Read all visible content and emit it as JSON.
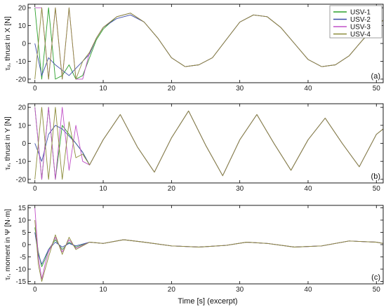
{
  "figure": {
    "xlabel": "Time [s] (excerpt)",
    "legend": {
      "placement": "top-right of panel (a)",
      "entries": [
        {
          "name": "USV-1",
          "color": "#2ca02c"
        },
        {
          "name": "USV-2",
          "color": "#3b4ca8"
        },
        {
          "name": "USV-3",
          "color": "#c050c8"
        },
        {
          "name": "USV-4",
          "color": "#8c8c3a"
        }
      ]
    }
  },
  "chart_data": [
    {
      "type": "line",
      "panel_label": "(a)",
      "ylabel": "τᵤ, thrust in X [N]",
      "xlim": [
        -1,
        51
      ],
      "ylim": [
        -22,
        22
      ],
      "xticks": [
        0,
        10,
        20,
        30,
        40,
        50
      ],
      "yticks": [
        -20,
        -10,
        0,
        10,
        20
      ],
      "grid": false,
      "series": [
        {
          "name": "USV-1",
          "x": [
            0,
            1,
            2,
            3,
            4,
            5,
            6,
            7,
            8,
            9,
            10,
            12,
            14,
            16,
            18,
            20,
            22,
            24,
            26,
            28,
            30,
            32,
            34,
            36,
            38,
            40,
            42,
            44,
            46,
            48,
            50,
            51
          ],
          "y": [
            20,
            -20,
            20,
            -20,
            -18,
            -12,
            -20,
            -18,
            -8,
            2,
            8,
            15,
            17,
            12,
            3,
            -8,
            -13,
            -12,
            -8,
            2,
            12,
            16,
            15,
            9,
            0,
            -9,
            -13,
            -12,
            -7,
            2,
            10,
            13
          ]
        },
        {
          "name": "USV-2",
          "x": [
            0,
            1,
            2,
            3,
            4,
            5,
            6,
            7,
            8,
            9,
            10,
            12,
            14,
            16,
            18,
            20,
            22,
            24,
            26,
            28,
            30,
            32,
            34,
            36,
            38,
            40,
            42,
            44,
            46,
            48,
            50,
            51
          ],
          "y": [
            0,
            -18,
            -8,
            -12,
            -15,
            -18,
            -14,
            -10,
            -6,
            3,
            9,
            14,
            16,
            12,
            3,
            -8,
            -13,
            -12,
            -8,
            2,
            12,
            16,
            15,
            9,
            0,
            -9,
            -13,
            -12,
            -7,
            2,
            10,
            13
          ]
        },
        {
          "name": "USV-3",
          "x": [
            0,
            1,
            2,
            3,
            4,
            5,
            6,
            7,
            8,
            9,
            10,
            12,
            14,
            16,
            18,
            20,
            22,
            24,
            26,
            28,
            30,
            32,
            34,
            36,
            38,
            40,
            42,
            44,
            46,
            48,
            50,
            51
          ],
          "y": [
            20,
            20,
            -20,
            20,
            -20,
            20,
            -20,
            -20,
            -5,
            3,
            9,
            15,
            17,
            12,
            3,
            -8,
            -13,
            -12,
            -8,
            2,
            12,
            16,
            15,
            9,
            0,
            -9,
            -13,
            -12,
            -7,
            2,
            10,
            13
          ]
        },
        {
          "name": "USV-4",
          "x": [
            0,
            1,
            2,
            3,
            4,
            5,
            6,
            7,
            8,
            9,
            10,
            12,
            14,
            16,
            18,
            20,
            22,
            24,
            26,
            28,
            30,
            32,
            34,
            36,
            38,
            40,
            42,
            44,
            46,
            48,
            50,
            51
          ],
          "y": [
            -20,
            20,
            -20,
            20,
            -20,
            20,
            -20,
            -10,
            -5,
            3,
            9,
            15,
            17,
            12,
            3,
            -8,
            -13,
            -12,
            -8,
            2,
            12,
            16,
            15,
            9,
            0,
            -9,
            -13,
            -12,
            -7,
            2,
            10,
            13
          ]
        }
      ]
    },
    {
      "type": "line",
      "panel_label": "(b)",
      "ylabel": "τᵥ, thrust in Y [N]",
      "xlim": [
        -1,
        51
      ],
      "ylim": [
        -22,
        22
      ],
      "xticks": [
        0,
        10,
        20,
        30,
        40,
        50
      ],
      "yticks": [
        -20,
        -10,
        0,
        10,
        20
      ],
      "grid": false,
      "series": [
        {
          "name": "USV-1",
          "x": [
            0,
            1,
            2,
            3,
            4,
            5,
            6,
            7,
            8,
            10,
            12.5,
            15,
            17.5,
            20,
            22.5,
            25,
            27.5,
            30,
            32.5,
            35,
            37.5,
            40,
            42.5,
            45,
            47.5,
            50,
            51
          ],
          "y": [
            20,
            -20,
            20,
            -20,
            10,
            5,
            0,
            -5,
            -12,
            2,
            16,
            -2,
            -16,
            3,
            18,
            -1,
            -18,
            2,
            16,
            0,
            -15,
            2,
            14,
            0,
            -13,
            5,
            8
          ]
        },
        {
          "name": "USV-2",
          "x": [
            0,
            1,
            2,
            3,
            4,
            5,
            6,
            7,
            8,
            10,
            12.5,
            15,
            17.5,
            20,
            22.5,
            25,
            27.5,
            30,
            32.5,
            35,
            37.5,
            40,
            42.5,
            45,
            47.5,
            50,
            51
          ],
          "y": [
            0,
            -10,
            5,
            10,
            8,
            4,
            0,
            -5,
            -12,
            2,
            16,
            -2,
            -16,
            3,
            18,
            -1,
            -18,
            2,
            16,
            0,
            -15,
            2,
            14,
            0,
            -13,
            5,
            8
          ]
        },
        {
          "name": "USV-3",
          "x": [
            0,
            1,
            2,
            3,
            4,
            5,
            6,
            7,
            8,
            10,
            12.5,
            15,
            17.5,
            20,
            22.5,
            25,
            27.5,
            30,
            32.5,
            35,
            37.5,
            40,
            42.5,
            45,
            47.5,
            50,
            51
          ],
          "y": [
            20,
            -20,
            20,
            -20,
            20,
            -15,
            10,
            -10,
            -12,
            2,
            16,
            -2,
            -16,
            3,
            18,
            -1,
            -18,
            2,
            16,
            0,
            -15,
            2,
            14,
            0,
            -13,
            5,
            8
          ]
        },
        {
          "name": "USV-4",
          "x": [
            0,
            1,
            2,
            3,
            4,
            5,
            6,
            7,
            8,
            10,
            12.5,
            15,
            17.5,
            20,
            22.5,
            25,
            27.5,
            30,
            32.5,
            35,
            37.5,
            40,
            42.5,
            45,
            47.5,
            50,
            51
          ],
          "y": [
            -20,
            20,
            -20,
            20,
            -20,
            12,
            -8,
            -6,
            -12,
            2,
            16,
            -2,
            -16,
            3,
            18,
            -1,
            -18,
            2,
            16,
            0,
            -15,
            2,
            14,
            0,
            -13,
            5,
            8
          ]
        }
      ]
    },
    {
      "type": "line",
      "panel_label": "(c)",
      "ylabel": "τᵣ, moment in Ψ [N·m]",
      "xlim": [
        -1,
        51
      ],
      "ylim": [
        -16,
        16
      ],
      "xticks": [
        0,
        10,
        20,
        30,
        40,
        50
      ],
      "yticks": [
        -15,
        -10,
        -5,
        0,
        5,
        10,
        15
      ],
      "grid": false,
      "series": [
        {
          "name": "USV-1",
          "x": [
            0,
            0.5,
            1,
            1.5,
            2,
            3,
            4,
            5,
            6,
            8,
            10,
            13,
            16,
            20,
            24,
            28,
            31,
            34,
            38,
            42,
            46,
            50,
            51
          ],
          "y": [
            7,
            -3,
            -9,
            -6,
            -2,
            2,
            -2,
            1,
            -1,
            1,
            0.5,
            2,
            1,
            -0.5,
            -1,
            -0.3,
            1,
            0.5,
            -1,
            -0.5,
            1.5,
            1,
            0.5
          ]
        },
        {
          "name": "USV-2",
          "x": [
            0,
            0.5,
            1,
            1.5,
            2,
            3,
            4,
            5,
            6,
            8,
            10,
            13,
            16,
            20,
            24,
            28,
            31,
            34,
            38,
            42,
            46,
            50,
            51
          ],
          "y": [
            5,
            -4,
            -8,
            -5,
            -2,
            1,
            -1,
            0.5,
            -0.5,
            1,
            0.5,
            2,
            1,
            -0.5,
            -1,
            -0.3,
            1,
            0.5,
            -1,
            -0.5,
            1.5,
            1,
            0.5
          ]
        },
        {
          "name": "USV-3",
          "x": [
            0,
            0.5,
            1,
            1.5,
            2,
            3,
            4,
            5,
            6,
            8,
            10,
            13,
            16,
            20,
            24,
            28,
            31,
            34,
            38,
            42,
            46,
            50,
            51
          ],
          "y": [
            15,
            -5,
            -14,
            -8,
            -3,
            3,
            -3,
            2,
            -1.5,
            1,
            0.5,
            2,
            1,
            -0.5,
            -1,
            -0.3,
            1,
            0.5,
            -1,
            -0.5,
            1.5,
            1,
            0.5
          ]
        },
        {
          "name": "USV-4",
          "x": [
            0,
            0.5,
            1,
            1.5,
            2,
            3,
            4,
            5,
            6,
            8,
            10,
            13,
            16,
            20,
            24,
            28,
            31,
            34,
            38,
            42,
            46,
            50,
            51
          ],
          "y": [
            10,
            -8,
            -15,
            -10,
            -5,
            4,
            -4,
            3,
            -2,
            1,
            0.5,
            2,
            1,
            -0.5,
            -1,
            -0.3,
            1,
            0.5,
            -1,
            -0.5,
            1.5,
            1,
            0.5
          ]
        }
      ]
    }
  ]
}
